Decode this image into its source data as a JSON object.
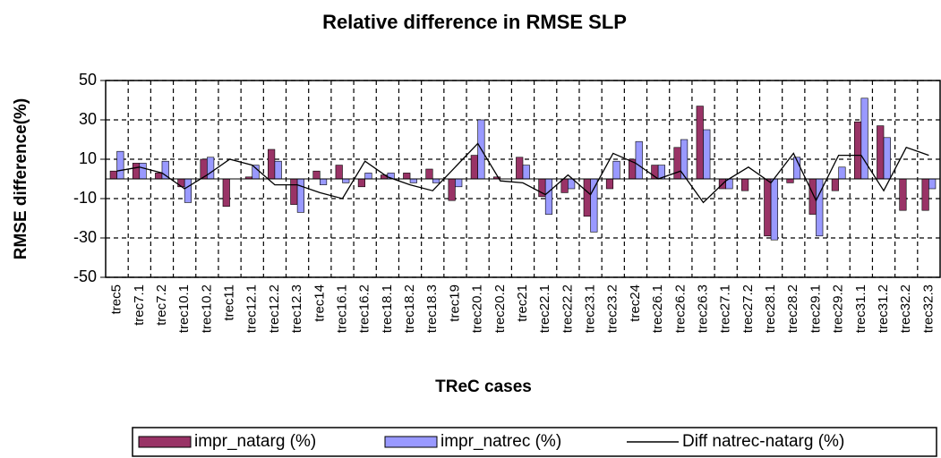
{
  "chart_data": {
    "type": "bar",
    "title": "Relative difference in RMSE SLP",
    "x_label": "TReC cases",
    "y_label": "RMSE difference(%)",
    "categories": [
      "trec5",
      "trec7.1",
      "trec7.2",
      "trec10.1",
      "trec10.2",
      "trec11",
      "trec12.1",
      "trec12.2",
      "trec12.3",
      "trec14",
      "trec16.1",
      "trec16.2",
      "trec18.1",
      "trec18.2",
      "trec18.3",
      "trec19",
      "trec20.1",
      "trec20.2",
      "trec21",
      "trec22.1",
      "trec22.2",
      "trec23.1",
      "trec23.2",
      "trec24",
      "trec26.1",
      "trec26.2",
      "trec26.3",
      "trec27.1",
      "trec27.2",
      "trec28.1",
      "trec28.2",
      "trec29.1",
      "trec29.2",
      "trec31.1",
      "trec31.2",
      "trec32.2",
      "trec32.3"
    ],
    "series": [
      {
        "name": "impr_natarg (%)",
        "type": "bar",
        "color": "#993366",
        "values": [
          4,
          8,
          3,
          -4,
          10,
          -14,
          1,
          15,
          -13,
          4,
          7,
          -4,
          2,
          3,
          5,
          -11,
          12,
          1,
          11,
          -9,
          -7,
          -19,
          -5,
          10,
          7,
          16,
          37,
          -5,
          -6,
          -29,
          -2,
          -18,
          -6,
          29,
          27,
          -16,
          -16
        ]
      },
      {
        "name": "impr_natrec (%)",
        "type": "bar",
        "color": "#9999ff",
        "values": [
          14,
          8,
          9,
          -12,
          11,
          0,
          7,
          9,
          -17,
          -3,
          -2,
          3,
          3,
          -2,
          -2,
          -4,
          30,
          0,
          7,
          -18,
          -5,
          -27,
          9,
          19,
          7,
          20,
          25,
          -5,
          0,
          -31,
          11,
          -29,
          6,
          41,
          21,
          0,
          -5
        ]
      },
      {
        "name": "Diff natrec-natarg (%)",
        "type": "line",
        "color": "#000000",
        "values": [
          4,
          6,
          3,
          -5,
          2,
          10,
          7,
          -3,
          -3,
          -7,
          -10,
          9,
          1,
          -3,
          -6,
          6,
          18,
          -1,
          -2,
          -8,
          2,
          -8,
          13,
          8,
          0,
          4,
          -12,
          -1,
          6,
          -2,
          13,
          -11,
          12,
          12,
          -6,
          16,
          12
        ]
      }
    ],
    "ylim": [
      -50,
      50
    ],
    "yticks": [
      -50,
      -30,
      -10,
      10,
      30,
      50
    ],
    "grid": true
  }
}
